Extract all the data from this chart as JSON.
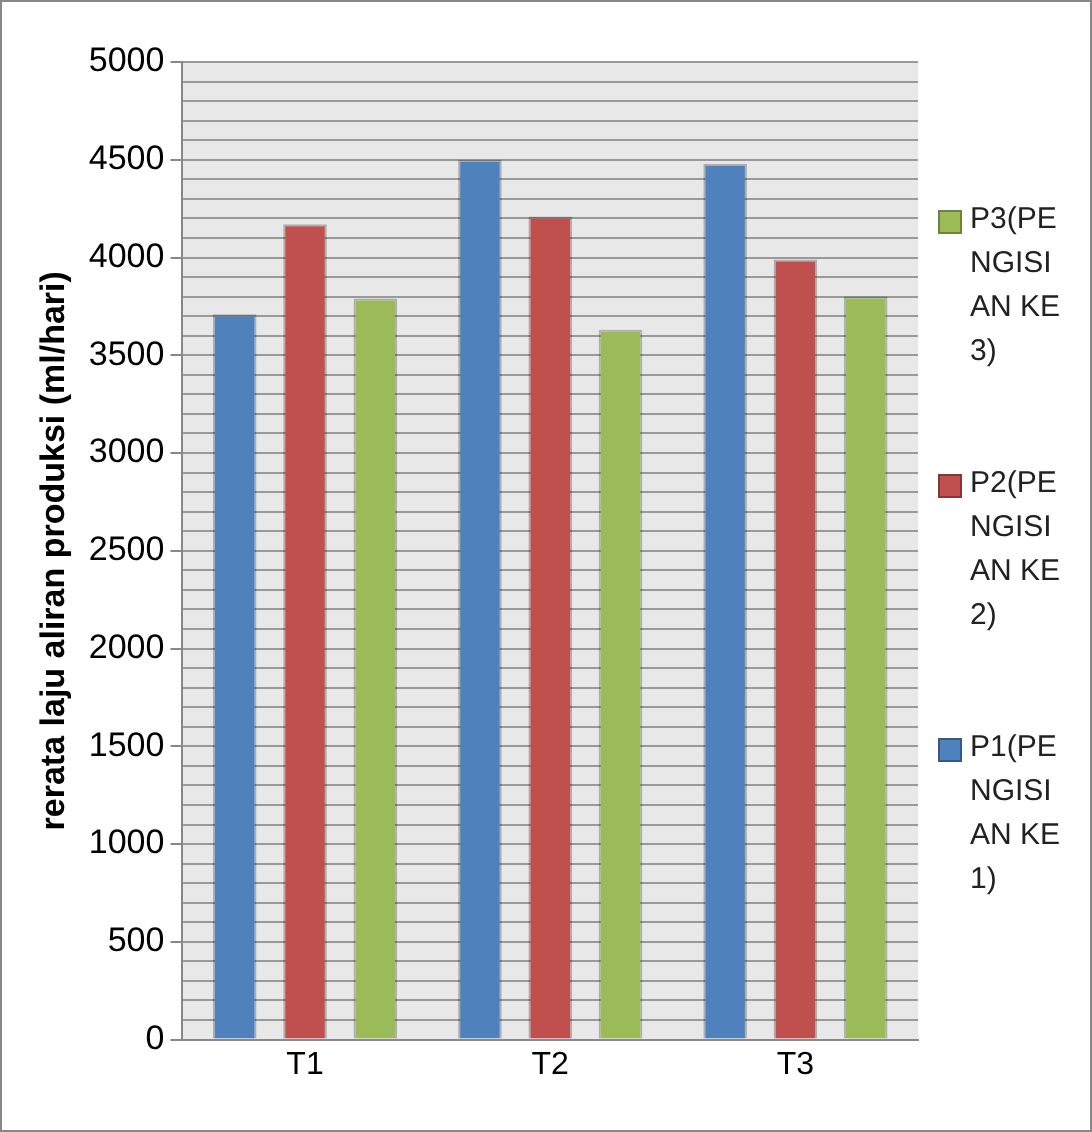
{
  "chart_data": {
    "type": "bar",
    "ylabel": "rerata laju aliran produksi (ml/hari)",
    "categories": [
      "T1",
      "T2",
      "T3"
    ],
    "series": [
      {
        "name": "P1(PENGISIAN KE 1)",
        "color": "#4f81bd",
        "values": [
          3710,
          4500,
          4480
        ]
      },
      {
        "name": "P2(PENGISIAN KE 2)",
        "color": "#c0504d",
        "values": [
          4170,
          4210,
          3990
        ]
      },
      {
        "name": "P3(PENGISIAN KE 3)",
        "color": "#9bbb59",
        "values": [
          3790,
          3630,
          3800
        ]
      }
    ],
    "ylim": [
      0,
      5000
    ],
    "yticks": [
      0,
      {
        "value": 100,
        "label": null
      },
      {
        "value": 200,
        "label": null
      },
      {
        "value": 300,
        "label": null
      },
      {
        "value": 400,
        "label": null
      },
      500,
      {
        "value": 600,
        "label": null
      },
      {
        "value": 700,
        "label": null
      },
      {
        "value": 800,
        "label": null
      },
      {
        "value": 900,
        "label": null
      },
      1000,
      {
        "value": 1100,
        "label": null
      },
      {
        "value": 1200,
        "label": null
      },
      {
        "value": 1300,
        "label": null
      },
      {
        "value": 1400,
        "label": null
      },
      1500,
      {
        "value": 1600,
        "label": null
      },
      {
        "value": 1700,
        "label": null
      },
      {
        "value": 1800,
        "label": null
      },
      {
        "value": 1900,
        "label": null
      },
      2000,
      {
        "value": 2100,
        "label": null
      },
      {
        "value": 2200,
        "label": null
      },
      {
        "value": 2300,
        "label": null
      },
      {
        "value": 2400,
        "label": null
      },
      2500,
      {
        "value": 2600,
        "label": null
      },
      {
        "value": 2700,
        "label": null
      },
      {
        "value": 2800,
        "label": null
      },
      {
        "value": 2900,
        "label": null
      },
      3000,
      {
        "value": 3100,
        "label": null
      },
      {
        "value": 3200,
        "label": null
      },
      {
        "value": 3300,
        "label": null
      },
      {
        "value": 3400,
        "label": null
      },
      3500,
      {
        "value": 3600,
        "label": null
      },
      {
        "value": 3700,
        "label": null
      },
      {
        "value": 3800,
        "label": null
      },
      {
        "value": 3900,
        "label": null
      },
      4000,
      {
        "value": 4100,
        "label": null
      },
      {
        "value": 4200,
        "label": null
      },
      {
        "value": 4300,
        "label": null
      },
      {
        "value": 4400,
        "label": null
      },
      4500,
      {
        "value": 4600,
        "label": null
      },
      {
        "value": 4700,
        "label": null
      },
      {
        "value": 4800,
        "label": null
      },
      {
        "value": 4900,
        "label": null
      },
      5000
    ],
    "grid": "y",
    "legend": "right"
  }
}
